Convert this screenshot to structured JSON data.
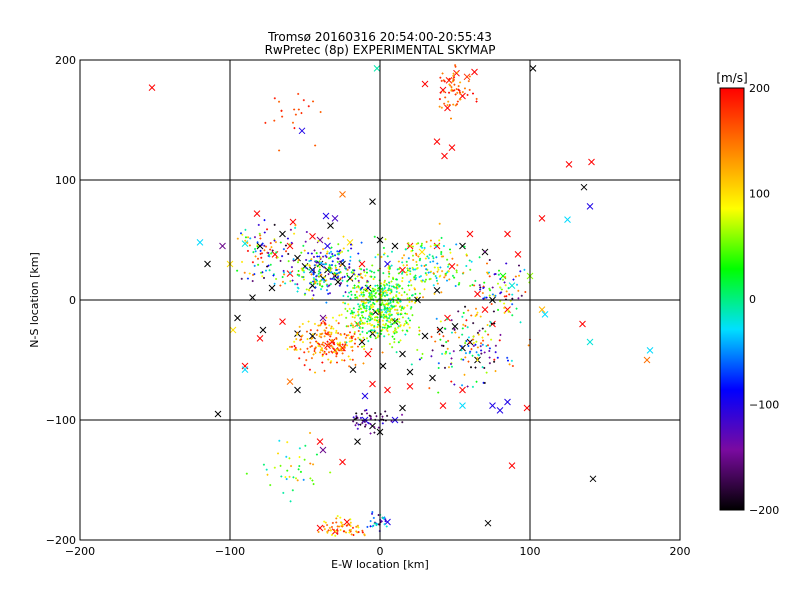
{
  "chart_data": {
    "type": "scatter",
    "title": "Tromsø 20160316 20:54:00-20:55:43",
    "subtitle": "RwPretec (8p) EXPERIMENTAL SKYMAP",
    "xlabel": "E-W location [km]",
    "ylabel": "N-S location [km]",
    "xlim": [
      -200,
      200
    ],
    "ylim": [
      -200,
      200
    ],
    "xticks": [
      -200,
      -100,
      0,
      100,
      200
    ],
    "yticks": [
      -200,
      -100,
      0,
      100,
      200
    ],
    "xtick_labels": [
      "−200",
      "−100",
      "0",
      "100",
      "200"
    ],
    "ytick_labels": [
      "−200",
      "−100",
      "0",
      "100",
      "200"
    ],
    "grid": true,
    "colorbar": {
      "label": "[m/s]",
      "range": [
        -200,
        200
      ],
      "ticks": [
        200,
        100,
        0,
        -100,
        -200
      ],
      "tick_labels": [
        "200",
        "100",
        "0",
        "−100",
        "−200"
      ],
      "colormap": [
        "#000000",
        "#7a0aa0",
        "#0000ff",
        "#00e0ff",
        "#00ff00",
        "#ffff00",
        "#ff8000",
        "#ff0000"
      ]
    },
    "points": [
      {
        "x": -152,
        "y": 177,
        "v": 200,
        "m": "x"
      },
      {
        "x": -2,
        "y": 193,
        "v": -10,
        "m": "x"
      },
      {
        "x": 51,
        "y": 189,
        "v": 200,
        "m": "x"
      },
      {
        "x": 46,
        "y": 183,
        "v": 190,
        "m": "x"
      },
      {
        "x": 58,
        "y": 186,
        "v": 180,
        "m": "x"
      },
      {
        "x": 42,
        "y": 175,
        "v": 200,
        "m": "x"
      },
      {
        "x": 55,
        "y": 170,
        "v": 200,
        "m": "x"
      },
      {
        "x": 63,
        "y": 190,
        "v": 200,
        "m": "x"
      },
      {
        "x": 102,
        "y": 193,
        "v": -200,
        "m": "x"
      },
      {
        "x": 30,
        "y": 180,
        "v": 200,
        "m": "x"
      },
      {
        "x": 45,
        "y": 160,
        "v": 200,
        "m": "x"
      },
      {
        "x": 38,
        "y": 132,
        "v": 200,
        "m": "x"
      },
      {
        "x": 48,
        "y": 127,
        "v": 200,
        "m": "x"
      },
      {
        "x": 43,
        "y": 120,
        "v": 200,
        "m": "x"
      },
      {
        "x": 126,
        "y": 113,
        "v": 200,
        "m": "x"
      },
      {
        "x": 141,
        "y": 115,
        "v": 200,
        "m": "x"
      },
      {
        "x": -52,
        "y": 141,
        "v": -100,
        "m": "x"
      },
      {
        "x": 136,
        "y": 94,
        "v": -200,
        "m": "x"
      },
      {
        "x": 140,
        "y": 78,
        "v": -100,
        "m": "x"
      },
      {
        "x": 125,
        "y": 67,
        "v": -30,
        "m": "x"
      },
      {
        "x": 108,
        "y": 68,
        "v": 200,
        "m": "x"
      },
      {
        "x": -82,
        "y": 72,
        "v": 200,
        "m": "x"
      },
      {
        "x": -36,
        "y": 70,
        "v": -100,
        "m": "x"
      },
      {
        "x": -30,
        "y": 68,
        "v": -120,
        "m": "x"
      },
      {
        "x": -33,
        "y": 62,
        "v": -200,
        "m": "x"
      },
      {
        "x": -5,
        "y": 82,
        "v": -200,
        "m": "x"
      },
      {
        "x": -25,
        "y": 88,
        "v": 150,
        "m": "x"
      },
      {
        "x": -90,
        "y": 47,
        "v": -20,
        "m": "x"
      },
      {
        "x": -80,
        "y": 45,
        "v": -200,
        "m": "x"
      },
      {
        "x": -60,
        "y": 45,
        "v": 200,
        "m": "x"
      },
      {
        "x": -55,
        "y": 35,
        "v": -200,
        "m": "x"
      },
      {
        "x": -50,
        "y": 28,
        "v": -200,
        "m": "x"
      },
      {
        "x": -45,
        "y": 25,
        "v": -200,
        "m": "x"
      },
      {
        "x": -40,
        "y": 30,
        "v": -200,
        "m": "x"
      },
      {
        "x": -35,
        "y": 25,
        "v": -200,
        "m": "x"
      },
      {
        "x": -30,
        "y": 20,
        "v": -200,
        "m": "x"
      },
      {
        "x": -25,
        "y": 30,
        "v": -200,
        "m": "x"
      },
      {
        "x": -28,
        "y": 15,
        "v": -200,
        "m": "x"
      },
      {
        "x": -38,
        "y": 18,
        "v": -200,
        "m": "x"
      },
      {
        "x": -45,
        "y": 12,
        "v": -200,
        "m": "x"
      },
      {
        "x": -20,
        "y": 18,
        "v": -200,
        "m": "x"
      },
      {
        "x": -60,
        "y": 22,
        "v": 200,
        "m": "x"
      },
      {
        "x": -70,
        "y": 38,
        "v": 200,
        "m": "x"
      },
      {
        "x": -72,
        "y": 10,
        "v": -200,
        "m": "x"
      },
      {
        "x": -78,
        "y": -25,
        "v": -200,
        "m": "x"
      },
      {
        "x": -80,
        "y": -32,
        "v": 200,
        "m": "x"
      },
      {
        "x": -65,
        "y": -18,
        "v": 200,
        "m": "x"
      },
      {
        "x": -55,
        "y": -28,
        "v": -200,
        "m": "x"
      },
      {
        "x": -45,
        "y": -30,
        "v": -200,
        "m": "x"
      },
      {
        "x": -35,
        "y": -38,
        "v": 200,
        "m": "x"
      },
      {
        "x": -30,
        "y": -42,
        "v": 200,
        "m": "x"
      },
      {
        "x": -32,
        "y": -35,
        "v": 200,
        "m": "x"
      },
      {
        "x": -25,
        "y": -40,
        "v": 200,
        "m": "x"
      },
      {
        "x": -38,
        "y": -15,
        "v": -150,
        "m": "x"
      },
      {
        "x": -15,
        "y": -20,
        "v": 150,
        "m": "x"
      },
      {
        "x": -12,
        "y": -35,
        "v": -200,
        "m": "x"
      },
      {
        "x": -5,
        "y": -28,
        "v": -200,
        "m": "x"
      },
      {
        "x": 5,
        "y": -8,
        "v": -30,
        "m": "x"
      },
      {
        "x": 2,
        "y": 8,
        "v": -30,
        "m": "x"
      },
      {
        "x": 10,
        "y": -18,
        "v": -200,
        "m": "x"
      },
      {
        "x": -3,
        "y": -10,
        "v": -200,
        "m": "x"
      },
      {
        "x": -8,
        "y": -45,
        "v": 200,
        "m": "x"
      },
      {
        "x": 15,
        "y": -45,
        "v": -200,
        "m": "x"
      },
      {
        "x": 30,
        "y": -30,
        "v": -200,
        "m": "x"
      },
      {
        "x": 40,
        "y": -25,
        "v": -200,
        "m": "x"
      },
      {
        "x": 50,
        "y": -22,
        "v": -200,
        "m": "x"
      },
      {
        "x": 55,
        "y": -40,
        "v": -200,
        "m": "x"
      },
      {
        "x": 65,
        "y": -50,
        "v": -200,
        "m": "x"
      },
      {
        "x": 60,
        "y": -35,
        "v": -200,
        "m": "x"
      },
      {
        "x": 75,
        "y": -20,
        "v": 200,
        "m": "x"
      },
      {
        "x": 85,
        "y": -8,
        "v": 200,
        "m": "x"
      },
      {
        "x": 88,
        "y": 12,
        "v": -20,
        "m": "x"
      },
      {
        "x": 82,
        "y": 20,
        "v": 30,
        "m": "x"
      },
      {
        "x": 75,
        "y": 0,
        "v": -200,
        "m": "x"
      },
      {
        "x": 70,
        "y": -8,
        "v": 200,
        "m": "x"
      },
      {
        "x": 65,
        "y": 5,
        "v": 200,
        "m": "x"
      },
      {
        "x": 48,
        "y": 28,
        "v": 200,
        "m": "x"
      },
      {
        "x": 38,
        "y": 45,
        "v": 200,
        "m": "x"
      },
      {
        "x": 28,
        "y": 40,
        "v": 100,
        "m": "x"
      },
      {
        "x": 20,
        "y": 45,
        "v": 200,
        "m": "x"
      },
      {
        "x": 10,
        "y": 45,
        "v": -200,
        "m": "x"
      },
      {
        "x": 0,
        "y": 50,
        "v": -200,
        "m": "x"
      },
      {
        "x": 70,
        "y": 40,
        "v": -200,
        "m": "x"
      },
      {
        "x": 85,
        "y": 55,
        "v": 200,
        "m": "x"
      },
      {
        "x": 100,
        "y": 20,
        "v": 60,
        "m": "x"
      },
      {
        "x": 108,
        "y": -8,
        "v": 120,
        "m": "x"
      },
      {
        "x": 110,
        "y": -12,
        "v": -30,
        "m": "x"
      },
      {
        "x": 135,
        "y": -20,
        "v": 200,
        "m": "x"
      },
      {
        "x": 140,
        "y": -35,
        "v": -20,
        "m": "x"
      },
      {
        "x": 180,
        "y": -42,
        "v": -30,
        "m": "x"
      },
      {
        "x": 178,
        "y": -50,
        "v": 150,
        "m": "x"
      },
      {
        "x": 85,
        "y": -85,
        "v": -100,
        "m": "x"
      },
      {
        "x": 80,
        "y": -92,
        "v": -100,
        "m": "x"
      },
      {
        "x": 75,
        "y": -88,
        "v": -100,
        "m": "x"
      },
      {
        "x": 98,
        "y": -90,
        "v": 200,
        "m": "x"
      },
      {
        "x": 88,
        "y": -138,
        "v": 200,
        "m": "x"
      },
      {
        "x": 142,
        "y": -149,
        "v": -200,
        "m": "x"
      },
      {
        "x": 72,
        "y": -186,
        "v": -200,
        "m": "x"
      },
      {
        "x": -108,
        "y": -95,
        "v": -200,
        "m": "x"
      },
      {
        "x": -40,
        "y": -118,
        "v": 200,
        "m": "x"
      },
      {
        "x": -38,
        "y": -125,
        "v": -150,
        "m": "x"
      },
      {
        "x": -25,
        "y": -135,
        "v": 200,
        "m": "x"
      },
      {
        "x": -15,
        "y": -118,
        "v": -200,
        "m": "x"
      },
      {
        "x": -5,
        "y": -105,
        "v": -200,
        "m": "x"
      },
      {
        "x": 0,
        "y": -110,
        "v": -200,
        "m": "x"
      },
      {
        "x": -10,
        "y": -100,
        "v": -100,
        "m": "x"
      },
      {
        "x": 10,
        "y": -100,
        "v": -100,
        "m": "x"
      },
      {
        "x": 15,
        "y": -90,
        "v": -200,
        "m": "x"
      },
      {
        "x": 5,
        "y": -185,
        "v": -100,
        "m": "x"
      },
      {
        "x": -30,
        "y": -193,
        "v": 200,
        "m": "x"
      },
      {
        "x": -40,
        "y": -190,
        "v": 200,
        "m": "x"
      },
      {
        "x": -22,
        "y": -185,
        "v": 200,
        "m": "x"
      },
      {
        "x": -90,
        "y": -55,
        "v": 200,
        "m": "x"
      },
      {
        "x": -90,
        "y": -58,
        "v": -30,
        "m": "x"
      },
      {
        "x": -55,
        "y": -75,
        "v": -200,
        "m": "x"
      },
      {
        "x": -60,
        "y": -68,
        "v": 150,
        "m": "x"
      },
      {
        "x": 20,
        "y": -72,
        "v": 200,
        "m": "x"
      },
      {
        "x": 35,
        "y": -65,
        "v": -200,
        "m": "x"
      },
      {
        "x": 55,
        "y": -75,
        "v": 200,
        "m": "x"
      },
      {
        "x": 42,
        "y": -88,
        "v": 200,
        "m": "x"
      },
      {
        "x": 55,
        "y": -88,
        "v": -30,
        "m": "x"
      },
      {
        "x": -12,
        "y": 30,
        "v": 200,
        "m": "x"
      },
      {
        "x": -8,
        "y": 10,
        "v": -200,
        "m": "x"
      },
      {
        "x": 25,
        "y": 0,
        "v": -200,
        "m": "x"
      },
      {
        "x": 38,
        "y": 8,
        "v": -200,
        "m": "x"
      },
      {
        "x": 45,
        "y": -15,
        "v": 200,
        "m": "x"
      },
      {
        "x": -120,
        "y": 48,
        "v": -30,
        "m": "x"
      },
      {
        "x": -115,
        "y": 30,
        "v": -200,
        "m": "x"
      },
      {
        "x": -100,
        "y": 30,
        "v": 100,
        "m": "x"
      },
      {
        "x": -85,
        "y": 2,
        "v": -200,
        "m": "x"
      },
      {
        "x": -95,
        "y": -15,
        "v": -200,
        "m": "x"
      },
      {
        "x": -98,
        "y": -25,
        "v": 100,
        "m": "x"
      },
      {
        "x": -105,
        "y": 45,
        "v": -150,
        "m": "x"
      },
      {
        "x": -45,
        "y": 53,
        "v": 200,
        "m": "x"
      },
      {
        "x": -35,
        "y": 45,
        "v": -100,
        "m": "x"
      },
      {
        "x": -20,
        "y": 48,
        "v": 100,
        "m": "x"
      },
      {
        "x": 5,
        "y": 30,
        "v": -100,
        "m": "x"
      },
      {
        "x": 15,
        "y": 25,
        "v": 200,
        "m": "x"
      },
      {
        "x": 55,
        "y": 45,
        "v": -200,
        "m": "x"
      },
      {
        "x": 60,
        "y": 55,
        "v": 200,
        "m": "x"
      },
      {
        "x": 92,
        "y": 38,
        "v": 200,
        "m": "x"
      },
      {
        "x": 20,
        "y": -60,
        "v": -200,
        "m": "x"
      },
      {
        "x": 2,
        "y": -55,
        "v": -200,
        "m": "x"
      },
      {
        "x": -5,
        "y": -70,
        "v": 200,
        "m": "x"
      },
      {
        "x": -10,
        "y": -80,
        "v": -100,
        "m": "x"
      },
      {
        "x": 5,
        "y": -75,
        "v": 200,
        "m": "x"
      },
      {
        "x": -18,
        "y": -58,
        "v": -200,
        "m": "x"
      },
      {
        "x": -40,
        "y": 50,
        "v": -150,
        "m": "x"
      },
      {
        "x": -65,
        "y": 55,
        "v": -200,
        "m": "x"
      },
      {
        "x": -58,
        "y": 65,
        "v": 200,
        "m": "x"
      }
    ]
  }
}
